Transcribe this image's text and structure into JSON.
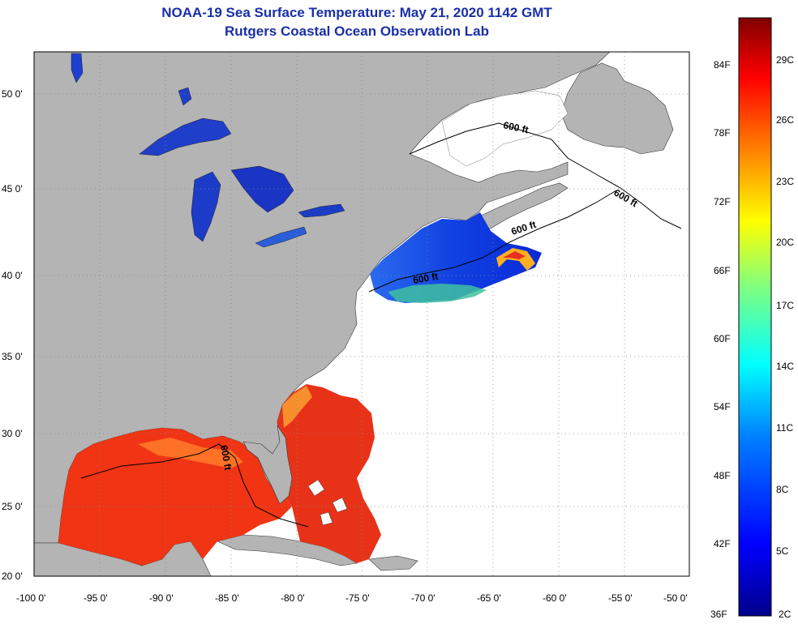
{
  "header": {
    "title": "NOAA-19 Sea Surface Temperature:  May 21, 2020 1142 GMT",
    "subtitle": "Rutgers Coastal Ocean Observation Lab"
  },
  "map": {
    "lon_labels": [
      "-100 0'",
      "-95 0'",
      "-90 0'",
      "-85 0'",
      "-80 0'",
      "-75 0'",
      "-70 0'",
      "-65 0'",
      "-60 0'",
      "-55 0'",
      "-50 0'"
    ],
    "lat_labels": [
      "50 0'",
      "45 0'",
      "40 0'",
      "35 0'",
      "30 0'",
      "25 0'",
      "20 0'"
    ],
    "contour_labels": [
      "600 ft",
      "600 ft",
      "600 ft",
      "600 ft",
      "600 ft"
    ],
    "colors": {
      "land": "#b4b4b4",
      "no_data": "#ffffff",
      "gulf_warm": "#f03010",
      "lakes": "#1e3fd0"
    }
  },
  "colorbar": {
    "f_labels": [
      "84F",
      "78F",
      "72F",
      "66F",
      "60F",
      "54F",
      "48F",
      "42F",
      "36F"
    ],
    "c_labels": [
      "29C",
      "26C",
      "23C",
      "20C",
      "17C",
      "14C",
      "11C",
      "8C",
      "5C",
      "2C"
    ]
  }
}
